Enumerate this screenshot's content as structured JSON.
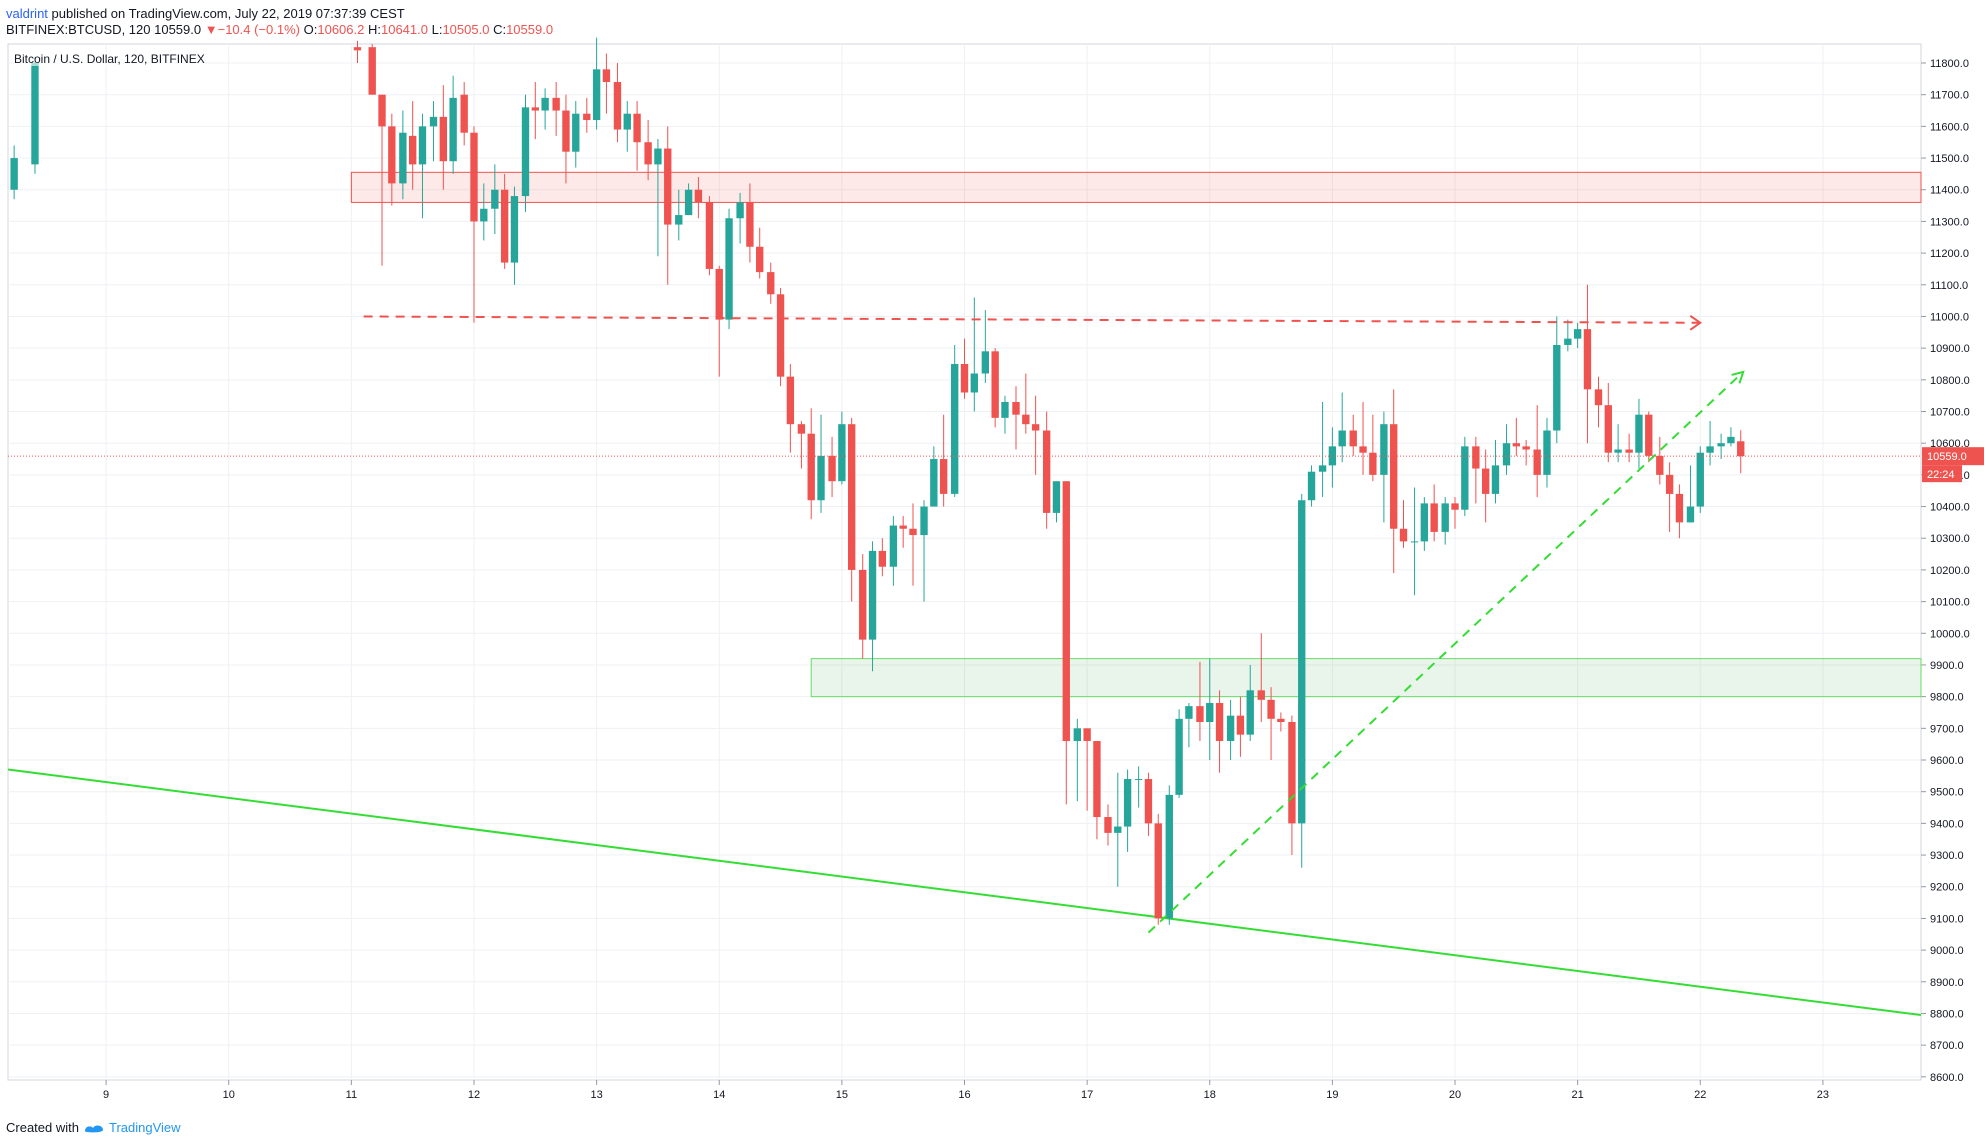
{
  "header": {
    "user": "valdrint",
    "published_text": " published on TradingView.com, July 22, 2019 07:37:39 CEST"
  },
  "symbol_bar": {
    "symbol": "BITFINEX:BTCUSD, 120",
    "price": "10559.0",
    "change_arrow": "▼",
    "change": "−10.4 (−0.1%)",
    "o_label": "O:",
    "o": "10606.2",
    "h_label": "H:",
    "h": "10641.0",
    "l_label": "L:",
    "l": "10505.0",
    "c_label": "C:",
    "c": "10559.0"
  },
  "legend_title": "Bitcoin / U.S. Dollar, 120, BITFINEX",
  "footer": {
    "created_with": "Created with",
    "brand": "TradingView"
  },
  "colors": {
    "up": "#26a69a",
    "down": "#ef5350",
    "zone_red": "#ef5350",
    "zone_green": "#4caf50",
    "trend_green": "#33dd33",
    "grid": "#eef0f3"
  },
  "chart_data": {
    "type": "candlestick",
    "x_ticks": [
      "9",
      "10",
      "11",
      "12",
      "13",
      "14",
      "15",
      "16",
      "17",
      "18",
      "19",
      "20",
      "21",
      "22",
      "23"
    ],
    "y_ticks": [
      "11800.0",
      "11700.0",
      "11600.0",
      "11500.0",
      "11400.0",
      "11300.0",
      "11200.0",
      "11100.0",
      "11000.0",
      "10900.0",
      "10800.0",
      "10700.0",
      "10600.0",
      "10500.0",
      "10400.0",
      "10300.0",
      "10200.0",
      "10100.0",
      "10000.0",
      "9900.0",
      "9800.0",
      "9700.0",
      "9600.0",
      "9500.0",
      "9400.0",
      "9300.0",
      "9200.0",
      "9100.0",
      "9000.0",
      "8900.0",
      "8800.0",
      "8700.0",
      "8600.0"
    ],
    "ylim": [
      8590,
      11860
    ],
    "xlim": [
      8.2,
      23.8
    ],
    "last_price_label": "10559.0",
    "countdown_label": "22:24",
    "last_price": 10559,
    "resistance_zone": {
      "x_start": 11.0,
      "y_low": 11360,
      "y_high": 11455
    },
    "support_zone": {
      "x_start": 14.75,
      "y_low": 9800,
      "y_high": 9920
    },
    "resistance_line": {
      "x1": 11.1,
      "y1": 11000,
      "x2": 22.0,
      "y2": 10980
    },
    "ascending_line": {
      "x1": 17.5,
      "y1": 9055,
      "x2": 22.35,
      "y2": 10825
    },
    "long_trendline": {
      "x1": 8.2,
      "y1": 9570,
      "x2": 23.8,
      "y2": 8795
    },
    "candles": [
      {
        "t": 8.25,
        "o": 11400,
        "h": 11540,
        "l": 11370,
        "c": 11500
      },
      {
        "t": 8.42,
        "o": 11480,
        "h": 11820,
        "l": 11450,
        "c": 11800
      },
      {
        "t": 11.05,
        "o": 11850,
        "h": 11870,
        "l": 11800,
        "c": 11840
      },
      {
        "t": 11.17,
        "o": 11850,
        "h": 11860,
        "l": 11700,
        "c": 11700
      },
      {
        "t": 11.25,
        "o": 11700,
        "h": 11700,
        "l": 11160,
        "c": 11600
      },
      {
        "t": 11.33,
        "o": 11600,
        "h": 11640,
        "l": 11350,
        "c": 11420
      },
      {
        "t": 11.42,
        "o": 11420,
        "h": 11650,
        "l": 11370,
        "c": 11580
      },
      {
        "t": 11.5,
        "o": 11570,
        "h": 11680,
        "l": 11400,
        "c": 11480
      },
      {
        "t": 11.58,
        "o": 11480,
        "h": 11640,
        "l": 11310,
        "c": 11600
      },
      {
        "t": 11.67,
        "o": 11600,
        "h": 11680,
        "l": 11490,
        "c": 11630
      },
      {
        "t": 11.75,
        "o": 11630,
        "h": 11730,
        "l": 11400,
        "c": 11490
      },
      {
        "t": 11.83,
        "o": 11490,
        "h": 11760,
        "l": 11450,
        "c": 11690
      },
      {
        "t": 11.92,
        "o": 11700,
        "h": 11740,
        "l": 11540,
        "c": 11580
      },
      {
        "t": 12.0,
        "o": 11580,
        "h": 11600,
        "l": 10980,
        "c": 11300
      },
      {
        "t": 12.08,
        "o": 11300,
        "h": 11420,
        "l": 11240,
        "c": 11340
      },
      {
        "t": 12.17,
        "o": 11340,
        "h": 11480,
        "l": 11260,
        "c": 11400
      },
      {
        "t": 12.25,
        "o": 11400,
        "h": 11450,
        "l": 11150,
        "c": 11170
      },
      {
        "t": 12.33,
        "o": 11170,
        "h": 11410,
        "l": 11100,
        "c": 11380
      },
      {
        "t": 12.42,
        "o": 11380,
        "h": 11700,
        "l": 11330,
        "c": 11660
      },
      {
        "t": 12.5,
        "o": 11660,
        "h": 11740,
        "l": 11560,
        "c": 11650
      },
      {
        "t": 12.58,
        "o": 11650,
        "h": 11720,
        "l": 11590,
        "c": 11690
      },
      {
        "t": 12.67,
        "o": 11690,
        "h": 11740,
        "l": 11570,
        "c": 11650
      },
      {
        "t": 12.75,
        "o": 11650,
        "h": 11700,
        "l": 11420,
        "c": 11520
      },
      {
        "t": 12.83,
        "o": 11520,
        "h": 11680,
        "l": 11470,
        "c": 11640
      },
      {
        "t": 12.92,
        "o": 11640,
        "h": 11690,
        "l": 11580,
        "c": 11620
      },
      {
        "t": 13.0,
        "o": 11620,
        "h": 11880,
        "l": 11590,
        "c": 11780
      },
      {
        "t": 13.08,
        "o": 11780,
        "h": 11830,
        "l": 11640,
        "c": 11740
      },
      {
        "t": 13.17,
        "o": 11740,
        "h": 11800,
        "l": 11550,
        "c": 11590
      },
      {
        "t": 13.25,
        "o": 11590,
        "h": 11680,
        "l": 11520,
        "c": 11640
      },
      {
        "t": 13.33,
        "o": 11640,
        "h": 11680,
        "l": 11460,
        "c": 11550
      },
      {
        "t": 13.42,
        "o": 11550,
        "h": 11620,
        "l": 11430,
        "c": 11480
      },
      {
        "t": 13.5,
        "o": 11480,
        "h": 11560,
        "l": 11190,
        "c": 11530
      },
      {
        "t": 13.58,
        "o": 11530,
        "h": 11600,
        "l": 11100,
        "c": 11290
      },
      {
        "t": 13.67,
        "o": 11290,
        "h": 11400,
        "l": 11240,
        "c": 11320
      },
      {
        "t": 13.75,
        "o": 11320,
        "h": 11420,
        "l": 11320,
        "c": 11400
      },
      {
        "t": 13.83,
        "o": 11400,
        "h": 11440,
        "l": 11310,
        "c": 11360
      },
      {
        "t": 13.92,
        "o": 11360,
        "h": 11380,
        "l": 11130,
        "c": 11150
      },
      {
        "t": 14.0,
        "o": 11150,
        "h": 11160,
        "l": 10810,
        "c": 10990
      },
      {
        "t": 14.08,
        "o": 10990,
        "h": 11340,
        "l": 10960,
        "c": 11310
      },
      {
        "t": 14.17,
        "o": 11310,
        "h": 11390,
        "l": 11230,
        "c": 11360
      },
      {
        "t": 14.25,
        "o": 11360,
        "h": 11420,
        "l": 11170,
        "c": 11220
      },
      {
        "t": 14.33,
        "o": 11220,
        "h": 11280,
        "l": 11120,
        "c": 11140
      },
      {
        "t": 14.42,
        "o": 11140,
        "h": 11170,
        "l": 11040,
        "c": 11070
      },
      {
        "t": 14.5,
        "o": 11070,
        "h": 11090,
        "l": 10780,
        "c": 10810
      },
      {
        "t": 14.58,
        "o": 10810,
        "h": 10850,
        "l": 10570,
        "c": 10660
      },
      {
        "t": 14.67,
        "o": 10660,
        "h": 10670,
        "l": 10520,
        "c": 10630
      },
      {
        "t": 14.75,
        "o": 10630,
        "h": 10710,
        "l": 10360,
        "c": 10420
      },
      {
        "t": 14.83,
        "o": 10420,
        "h": 10690,
        "l": 10380,
        "c": 10560
      },
      {
        "t": 14.92,
        "o": 10560,
        "h": 10620,
        "l": 10430,
        "c": 10480
      },
      {
        "t": 15.0,
        "o": 10480,
        "h": 10700,
        "l": 10470,
        "c": 10660
      },
      {
        "t": 15.08,
        "o": 10660,
        "h": 10680,
        "l": 10100,
        "c": 10200
      },
      {
        "t": 15.17,
        "o": 10200,
        "h": 10250,
        "l": 9920,
        "c": 9980
      },
      {
        "t": 15.25,
        "o": 9980,
        "h": 10290,
        "l": 9880,
        "c": 10260
      },
      {
        "t": 15.33,
        "o": 10260,
        "h": 10300,
        "l": 10180,
        "c": 10210
      },
      {
        "t": 15.42,
        "o": 10210,
        "h": 10370,
        "l": 10150,
        "c": 10340
      },
      {
        "t": 15.5,
        "o": 10340,
        "h": 10370,
        "l": 10270,
        "c": 10330
      },
      {
        "t": 15.58,
        "o": 10330,
        "h": 10410,
        "l": 10150,
        "c": 10310
      },
      {
        "t": 15.67,
        "o": 10310,
        "h": 10420,
        "l": 10100,
        "c": 10400
      },
      {
        "t": 15.75,
        "o": 10400,
        "h": 10590,
        "l": 10400,
        "c": 10550
      },
      {
        "t": 15.83,
        "o": 10550,
        "h": 10690,
        "l": 10400,
        "c": 10440
      },
      {
        "t": 15.92,
        "o": 10440,
        "h": 10910,
        "l": 10430,
        "c": 10850
      },
      {
        "t": 16.0,
        "o": 10850,
        "h": 10930,
        "l": 10740,
        "c": 10760
      },
      {
        "t": 16.08,
        "o": 10760,
        "h": 11060,
        "l": 10700,
        "c": 10820
      },
      {
        "t": 16.17,
        "o": 10820,
        "h": 11020,
        "l": 10790,
        "c": 10890
      },
      {
        "t": 16.25,
        "o": 10890,
        "h": 10900,
        "l": 10650,
        "c": 10680
      },
      {
        "t": 16.33,
        "o": 10680,
        "h": 10750,
        "l": 10630,
        "c": 10730
      },
      {
        "t": 16.42,
        "o": 10730,
        "h": 10780,
        "l": 10580,
        "c": 10690
      },
      {
        "t": 16.5,
        "o": 10690,
        "h": 10820,
        "l": 10630,
        "c": 10660
      },
      {
        "t": 16.58,
        "o": 10660,
        "h": 10750,
        "l": 10500,
        "c": 10640
      },
      {
        "t": 16.67,
        "o": 10640,
        "h": 10700,
        "l": 10330,
        "c": 10380
      },
      {
        "t": 16.75,
        "o": 10380,
        "h": 10480,
        "l": 10350,
        "c": 10480
      },
      {
        "t": 16.83,
        "o": 10480,
        "h": 10480,
        "l": 9460,
        "c": 9660
      },
      {
        "t": 16.92,
        "o": 9660,
        "h": 9730,
        "l": 9470,
        "c": 9700
      },
      {
        "t": 17.0,
        "o": 9700,
        "h": 9700,
        "l": 9440,
        "c": 9660
      },
      {
        "t": 17.08,
        "o": 9660,
        "h": 9660,
        "l": 9350,
        "c": 9420
      },
      {
        "t": 17.17,
        "o": 9420,
        "h": 9460,
        "l": 9330,
        "c": 9370
      },
      {
        "t": 17.25,
        "o": 9370,
        "h": 9560,
        "l": 9200,
        "c": 9390
      },
      {
        "t": 17.33,
        "o": 9390,
        "h": 9570,
        "l": 9310,
        "c": 9540
      },
      {
        "t": 17.42,
        "o": 9540,
        "h": 9580,
        "l": 9450,
        "c": 9540
      },
      {
        "t": 17.5,
        "o": 9540,
        "h": 9560,
        "l": 9360,
        "c": 9400
      },
      {
        "t": 17.58,
        "o": 9400,
        "h": 9430,
        "l": 9080,
        "c": 9100
      },
      {
        "t": 17.67,
        "o": 9100,
        "h": 9520,
        "l": 9080,
        "c": 9490
      },
      {
        "t": 17.75,
        "o": 9490,
        "h": 9760,
        "l": 9480,
        "c": 9730
      },
      {
        "t": 17.83,
        "o": 9730,
        "h": 9780,
        "l": 9640,
        "c": 9770
      },
      {
        "t": 17.92,
        "o": 9770,
        "h": 9910,
        "l": 9660,
        "c": 9720
      },
      {
        "t": 18.0,
        "o": 9720,
        "h": 9920,
        "l": 9600,
        "c": 9780
      },
      {
        "t": 18.08,
        "o": 9780,
        "h": 9820,
        "l": 9560,
        "c": 9660
      },
      {
        "t": 18.17,
        "o": 9660,
        "h": 9790,
        "l": 9600,
        "c": 9740
      },
      {
        "t": 18.25,
        "o": 9740,
        "h": 9800,
        "l": 9610,
        "c": 9680
      },
      {
        "t": 18.33,
        "o": 9680,
        "h": 9900,
        "l": 9660,
        "c": 9820
      },
      {
        "t": 18.42,
        "o": 9820,
        "h": 10000,
        "l": 9720,
        "c": 9790
      },
      {
        "t": 18.5,
        "o": 9790,
        "h": 9830,
        "l": 9600,
        "c": 9730
      },
      {
        "t": 18.58,
        "o": 9730,
        "h": 9750,
        "l": 9690,
        "c": 9720
      },
      {
        "t": 18.67,
        "o": 9720,
        "h": 9740,
        "l": 9300,
        "c": 9400
      },
      {
        "t": 18.75,
        "o": 9400,
        "h": 10440,
        "l": 9260,
        "c": 10420
      },
      {
        "t": 18.83,
        "o": 10420,
        "h": 10530,
        "l": 10400,
        "c": 10510
      },
      {
        "t": 18.92,
        "o": 10510,
        "h": 10730,
        "l": 10430,
        "c": 10530
      },
      {
        "t": 19.0,
        "o": 10530,
        "h": 10650,
        "l": 10460,
        "c": 10590
      },
      {
        "t": 19.08,
        "o": 10590,
        "h": 10760,
        "l": 10540,
        "c": 10640
      },
      {
        "t": 19.17,
        "o": 10640,
        "h": 10690,
        "l": 10560,
        "c": 10590
      },
      {
        "t": 19.25,
        "o": 10590,
        "h": 10730,
        "l": 10500,
        "c": 10570
      },
      {
        "t": 19.33,
        "o": 10570,
        "h": 10690,
        "l": 10480,
        "c": 10500
      },
      {
        "t": 19.42,
        "o": 10500,
        "h": 10700,
        "l": 10350,
        "c": 10660
      },
      {
        "t": 19.5,
        "o": 10660,
        "h": 10770,
        "l": 10190,
        "c": 10330
      },
      {
        "t": 19.58,
        "o": 10330,
        "h": 10420,
        "l": 10270,
        "c": 10290
      },
      {
        "t": 19.67,
        "o": 10290,
        "h": 10460,
        "l": 10120,
        "c": 10290
      },
      {
        "t": 19.75,
        "o": 10290,
        "h": 10430,
        "l": 10260,
        "c": 10410
      },
      {
        "t": 19.83,
        "o": 10410,
        "h": 10470,
        "l": 10290,
        "c": 10320
      },
      {
        "t": 19.92,
        "o": 10320,
        "h": 10430,
        "l": 10280,
        "c": 10410
      },
      {
        "t": 20.0,
        "o": 10410,
        "h": 10430,
        "l": 10330,
        "c": 10390
      },
      {
        "t": 20.08,
        "o": 10390,
        "h": 10620,
        "l": 10370,
        "c": 10590
      },
      {
        "t": 20.17,
        "o": 10590,
        "h": 10620,
        "l": 10410,
        "c": 10520
      },
      {
        "t": 20.25,
        "o": 10520,
        "h": 10580,
        "l": 10350,
        "c": 10440
      },
      {
        "t": 20.33,
        "o": 10440,
        "h": 10610,
        "l": 10410,
        "c": 10530
      },
      {
        "t": 20.42,
        "o": 10530,
        "h": 10660,
        "l": 10500,
        "c": 10600
      },
      {
        "t": 20.5,
        "o": 10600,
        "h": 10680,
        "l": 10560,
        "c": 10590
      },
      {
        "t": 20.58,
        "o": 10590,
        "h": 10610,
        "l": 10530,
        "c": 10580
      },
      {
        "t": 20.67,
        "o": 10580,
        "h": 10720,
        "l": 10430,
        "c": 10500
      },
      {
        "t": 20.75,
        "o": 10500,
        "h": 10680,
        "l": 10460,
        "c": 10640
      },
      {
        "t": 20.83,
        "o": 10640,
        "h": 11000,
        "l": 10600,
        "c": 10910
      },
      {
        "t": 20.92,
        "o": 10910,
        "h": 10990,
        "l": 10890,
        "c": 10930
      },
      {
        "t": 21.0,
        "o": 10930,
        "h": 10980,
        "l": 10900,
        "c": 10960
      },
      {
        "t": 21.08,
        "o": 10960,
        "h": 11100,
        "l": 10600,
        "c": 10770
      },
      {
        "t": 21.17,
        "o": 10770,
        "h": 10810,
        "l": 10650,
        "c": 10720
      },
      {
        "t": 21.25,
        "o": 10720,
        "h": 10790,
        "l": 10540,
        "c": 10570
      },
      {
        "t": 21.33,
        "o": 10570,
        "h": 10660,
        "l": 10540,
        "c": 10580
      },
      {
        "t": 21.42,
        "o": 10580,
        "h": 10630,
        "l": 10540,
        "c": 10570
      },
      {
        "t": 21.5,
        "o": 10570,
        "h": 10740,
        "l": 10520,
        "c": 10690
      },
      {
        "t": 21.58,
        "o": 10690,
        "h": 10700,
        "l": 10540,
        "c": 10560
      },
      {
        "t": 21.67,
        "o": 10560,
        "h": 10620,
        "l": 10470,
        "c": 10500
      },
      {
        "t": 21.75,
        "o": 10500,
        "h": 10540,
        "l": 10320,
        "c": 10440
      },
      {
        "t": 21.83,
        "o": 10440,
        "h": 10470,
        "l": 10300,
        "c": 10350
      },
      {
        "t": 21.92,
        "o": 10350,
        "h": 10530,
        "l": 10350,
        "c": 10400
      },
      {
        "t": 22.0,
        "o": 10400,
        "h": 10590,
        "l": 10380,
        "c": 10570
      },
      {
        "t": 22.08,
        "o": 10570,
        "h": 10670,
        "l": 10530,
        "c": 10590
      },
      {
        "t": 22.17,
        "o": 10590,
        "h": 10630,
        "l": 10550,
        "c": 10600
      },
      {
        "t": 22.25,
        "o": 10600,
        "h": 10650,
        "l": 10590,
        "c": 10620
      },
      {
        "t": 22.33,
        "o": 10606,
        "h": 10641,
        "l": 10505,
        "c": 10559
      }
    ]
  }
}
